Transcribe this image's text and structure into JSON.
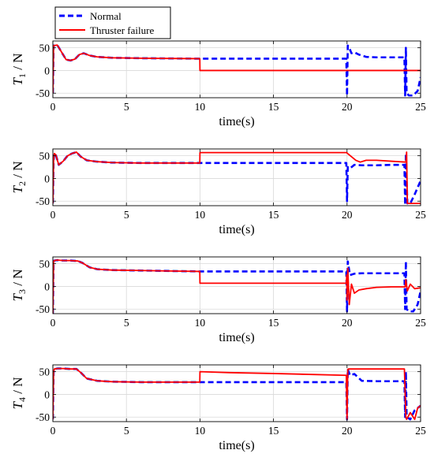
{
  "legend": {
    "items": [
      {
        "label": "Normal",
        "color": "#0000ff",
        "style": "dashed"
      },
      {
        "label": "Thruster failure",
        "color": "#ff0000",
        "style": "solid"
      }
    ]
  },
  "colors": {
    "normal": "#0000ff",
    "failure": "#ff0000",
    "grid": "#d9d9d9",
    "axis": "#000000"
  },
  "chart_data": [
    {
      "type": "line",
      "ylabel": "T",
      "ylabel_sub": "1",
      "ylabel_unit": " / N",
      "xlabel": "time(s)",
      "xlim": [
        0,
        25
      ],
      "ylim": [
        -60,
        65
      ],
      "xticks": [
        0,
        5,
        10,
        15,
        20,
        25
      ],
      "yticks": [
        -50,
        0,
        50
      ],
      "grid": true,
      "series": [
        {
          "name": "Normal",
          "x": [
            0,
            0.05,
            0.1,
            0.3,
            0.6,
            0.9,
            1.2,
            1.5,
            1.8,
            2.1,
            2.5,
            3,
            4,
            6,
            8,
            10,
            12,
            15,
            19.95,
            20.0,
            20.05,
            20.15,
            20.3,
            20.5,
            20.8,
            21.3,
            22,
            23,
            23.9,
            23.95,
            24.0,
            24.05,
            24.2,
            24.5,
            24.8,
            25
          ],
          "y": [
            -50,
            55,
            55,
            56,
            40,
            24,
            22,
            25,
            35,
            38,
            33,
            30,
            28,
            27,
            26.5,
            26,
            26,
            26,
            26,
            -55,
            55,
            50,
            38,
            40,
            35,
            30,
            29,
            29,
            29,
            -55,
            50,
            -50,
            -55,
            -55,
            -45,
            -15
          ]
        },
        {
          "name": "Thruster failure",
          "x": [
            0,
            0.05,
            0.1,
            0.3,
            0.6,
            0.9,
            1.2,
            1.5,
            1.8,
            2.1,
            2.5,
            3,
            4,
            6,
            8,
            9.99,
            10.0,
            12,
            15,
            20,
            24,
            25
          ],
          "y": [
            -50,
            55,
            55,
            56,
            40,
            24,
            22,
            25,
            35,
            38,
            33,
            30,
            28,
            27,
            26.5,
            26,
            0,
            0,
            0,
            0,
            0,
            0
          ]
        }
      ]
    },
    {
      "type": "line",
      "ylabel": "T",
      "ylabel_sub": "2",
      "ylabel_unit": " / N",
      "xlabel": "time(s)",
      "xlim": [
        0,
        25
      ],
      "ylim": [
        -60,
        65
      ],
      "xticks": [
        0,
        5,
        10,
        15,
        20,
        25
      ],
      "yticks": [
        -50,
        0,
        50
      ],
      "grid": true,
      "series": [
        {
          "name": "Normal",
          "x": [
            0,
            0.05,
            0.1,
            0.2,
            0.4,
            0.7,
            1.0,
            1.3,
            1.6,
            1.9,
            2.3,
            3,
            4,
            6,
            8,
            10,
            12,
            15,
            19.95,
            20.0,
            20.05,
            20.2,
            20.5,
            21,
            22,
            23,
            23.9,
            23.95,
            24.0,
            24.1,
            24.3,
            24.6,
            25
          ],
          "y": [
            -55,
            40,
            55,
            52,
            30,
            38,
            50,
            55,
            58,
            48,
            40,
            37,
            35,
            34,
            34,
            34,
            34,
            34,
            34,
            -50,
            25,
            22,
            30,
            29,
            29,
            30,
            30,
            -58,
            55,
            -55,
            -55,
            -35,
            -5
          ]
        },
        {
          "name": "Thruster failure",
          "x": [
            0,
            0.05,
            0.1,
            0.2,
            0.4,
            0.7,
            1.0,
            1.3,
            1.6,
            1.9,
            2.3,
            3,
            4,
            6,
            8,
            9.99,
            10.0,
            12,
            15,
            19.99,
            20.0,
            20.3,
            20.6,
            20.9,
            21.3,
            22,
            23,
            24,
            24.05,
            24.1,
            25
          ],
          "y": [
            -55,
            40,
            55,
            52,
            30,
            38,
            50,
            55,
            58,
            48,
            40,
            37,
            35,
            34,
            34,
            34,
            57,
            57,
            57,
            57,
            56,
            48,
            40,
            36,
            40,
            40,
            38,
            36,
            58,
            -55,
            -55
          ]
        }
      ]
    },
    {
      "type": "line",
      "ylabel": "T",
      "ylabel_sub": "3",
      "ylabel_unit": " / N",
      "xlabel": "time(s)",
      "xlim": [
        0,
        25
      ],
      "ylim": [
        -60,
        65
      ],
      "xticks": [
        0,
        5,
        10,
        15,
        20,
        25
      ],
      "yticks": [
        -50,
        0,
        50
      ],
      "grid": true,
      "series": [
        {
          "name": "Normal",
          "x": [
            0,
            0.05,
            0.1,
            0.3,
            0.7,
            1.2,
            1.7,
            2.0,
            2.5,
            3,
            4,
            6,
            8,
            10,
            12,
            15,
            19.95,
            20.0,
            20.05,
            20.2,
            20.5,
            21,
            22,
            23,
            23.9,
            23.95,
            24.0,
            24.05,
            24.2,
            24.5,
            24.8,
            25
          ],
          "y": [
            -60,
            55,
            57,
            58,
            57,
            57,
            56,
            52,
            42,
            38,
            36,
            35,
            34,
            33,
            33,
            33,
            33,
            -55,
            55,
            25,
            28,
            29,
            29,
            29,
            29,
            -50,
            55,
            -50,
            -55,
            -55,
            -40,
            -10
          ]
        },
        {
          "name": "Thruster failure",
          "x": [
            0,
            0.05,
            0.1,
            0.3,
            0.7,
            1.2,
            1.7,
            2.0,
            2.5,
            3,
            4,
            6,
            8,
            9.99,
            10.0,
            12,
            15,
            19.95,
            19.98,
            20.0,
            20.05,
            20.15,
            20.3,
            20.5,
            20.8,
            21.3,
            22,
            23,
            23.95,
            24.0,
            24.1,
            24.3,
            24.6,
            25
          ],
          "y": [
            -60,
            55,
            57,
            58,
            57,
            57,
            56,
            52,
            42,
            38,
            36,
            35,
            34,
            33,
            7,
            7,
            7,
            7,
            25,
            -30,
            40,
            -40,
            5,
            -15,
            -8,
            -5,
            -2,
            -1,
            -1,
            15,
            -10,
            5,
            -5,
            -3
          ]
        }
      ]
    },
    {
      "type": "line",
      "ylabel": "T",
      "ylabel_sub": "4",
      "ylabel_unit": " / N",
      "xlabel": "time(s)",
      "xlim": [
        0,
        25
      ],
      "ylim": [
        -60,
        65
      ],
      "xticks": [
        0,
        5,
        10,
        15,
        20,
        25
      ],
      "yticks": [
        -50,
        0,
        50
      ],
      "grid": true,
      "series": [
        {
          "name": "Normal",
          "x": [
            0,
            0.05,
            0.1,
            0.3,
            0.7,
            1.2,
            1.6,
            1.9,
            2.3,
            3,
            4,
            6,
            8,
            10,
            12,
            15,
            19.95,
            20.0,
            20.05,
            20.2,
            20.5,
            21,
            22,
            23,
            23.9,
            23.95,
            24.0,
            24.05,
            24.3,
            24.6,
            25
          ],
          "y": [
            -55,
            50,
            56,
            57,
            57,
            56,
            56,
            48,
            35,
            30,
            28,
            27,
            27,
            27,
            27,
            27,
            27,
            -55,
            55,
            42,
            45,
            30,
            29,
            29,
            29,
            -50,
            50,
            -50,
            -55,
            -35,
            -25
          ]
        },
        {
          "name": "Thruster failure",
          "x": [
            0,
            0.05,
            0.1,
            0.3,
            0.7,
            1.2,
            1.6,
            1.9,
            2.3,
            3,
            4,
            6,
            8,
            9.99,
            10.0,
            12,
            15,
            19.95,
            20.0,
            20.05,
            20.1,
            20.3,
            22,
            23.9,
            24.0,
            24.05,
            24.3,
            24.6,
            24.8,
            25
          ],
          "y": [
            -55,
            50,
            56,
            57,
            57,
            56,
            56,
            48,
            35,
            30,
            28,
            27,
            27,
            27,
            50,
            48,
            46,
            42,
            -55,
            55,
            56,
            56,
            56,
            56,
            -50,
            -55,
            -40,
            -55,
            -30,
            -25
          ]
        }
      ]
    }
  ]
}
